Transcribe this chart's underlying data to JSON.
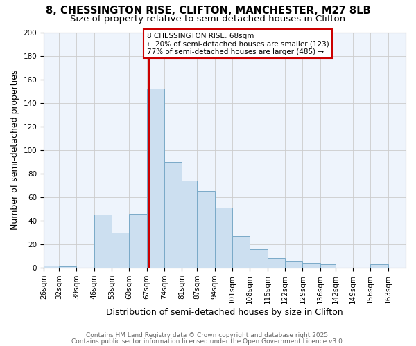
{
  "title": "8, CHESSINGTON RISE, CLIFTON, MANCHESTER, M27 8LB",
  "subtitle": "Size of property relative to semi-detached houses in Clifton",
  "xlabel": "Distribution of semi-detached houses by size in Clifton",
  "ylabel": "Number of semi-detached properties",
  "bin_labels": [
    "26sqm",
    "32sqm",
    "39sqm",
    "46sqm",
    "53sqm",
    "60sqm",
    "67sqm",
    "74sqm",
    "81sqm",
    "87sqm",
    "94sqm",
    "101sqm",
    "108sqm",
    "115sqm",
    "122sqm",
    "129sqm",
    "136sqm",
    "142sqm",
    "149sqm",
    "156sqm",
    "163sqm"
  ],
  "bin_edges": [
    26,
    32,
    39,
    46,
    53,
    60,
    67,
    74,
    81,
    87,
    94,
    101,
    108,
    115,
    122,
    129,
    136,
    142,
    149,
    156,
    163,
    170
  ],
  "bar_heights": [
    2,
    1,
    0,
    45,
    30,
    46,
    152,
    90,
    74,
    65,
    51,
    27,
    16,
    8,
    6,
    4,
    3,
    0,
    0,
    3,
    0
  ],
  "bar_color": "#ccdff0",
  "bar_edge_color": "#7aaac8",
  "vline_x": 68,
  "vline_color": "#cc0000",
  "annotation_title": "8 CHESSINGTON RISE: 68sqm",
  "annotation_line1": "← 20% of semi-detached houses are smaller (123)",
  "annotation_line2": "77% of semi-detached houses are larger (485) →",
  "annotation_box_color": "#ffffff",
  "annotation_box_edge": "#cc0000",
  "ylim": [
    0,
    200
  ],
  "yticks": [
    0,
    20,
    40,
    60,
    80,
    100,
    120,
    140,
    160,
    180,
    200
  ],
  "footer1": "Contains HM Land Registry data © Crown copyright and database right 2025.",
  "footer2": "Contains public sector information licensed under the Open Government Licence v3.0.",
  "bg_color": "#ffffff",
  "plot_bg_color": "#eef4fc",
  "grid_color": "#cccccc",
  "title_fontsize": 10.5,
  "subtitle_fontsize": 9.5,
  "axis_label_fontsize": 9,
  "tick_fontsize": 7.5,
  "footer_fontsize": 6.5
}
